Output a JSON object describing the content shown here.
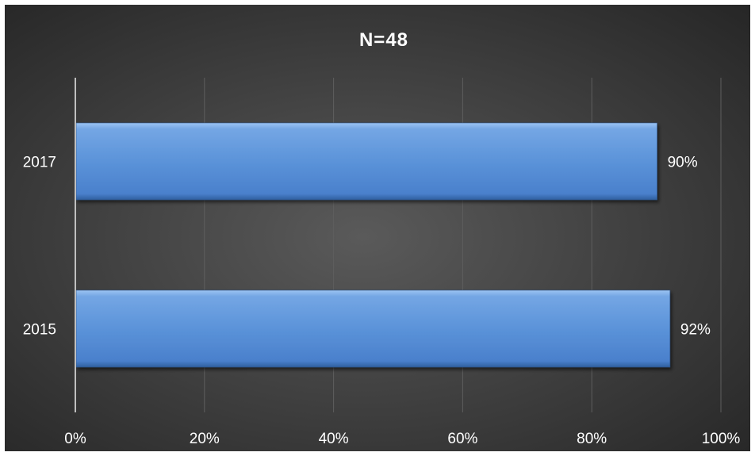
{
  "chart_data": {
    "type": "bar",
    "orientation": "horizontal",
    "title": "N=48",
    "categories": [
      "2017",
      "2015"
    ],
    "values": [
      90,
      92
    ],
    "value_labels": [
      "90%",
      "92%"
    ],
    "xlim": [
      0,
      100
    ],
    "x_ticks": [
      0,
      20,
      40,
      60,
      80,
      100
    ],
    "x_tick_labels": [
      "0%",
      "20%",
      "40%",
      "60%",
      "80%",
      "100%"
    ],
    "grid": "vertical",
    "legend": "none",
    "colors": {
      "bar_top": "#7fb0ea",
      "bar_mid": "#5a92d8",
      "bar_bottom": "#3f78c4",
      "gridline": "#5e5e5e",
      "axis": "#bfbfbf",
      "text": "#ffffff"
    }
  }
}
